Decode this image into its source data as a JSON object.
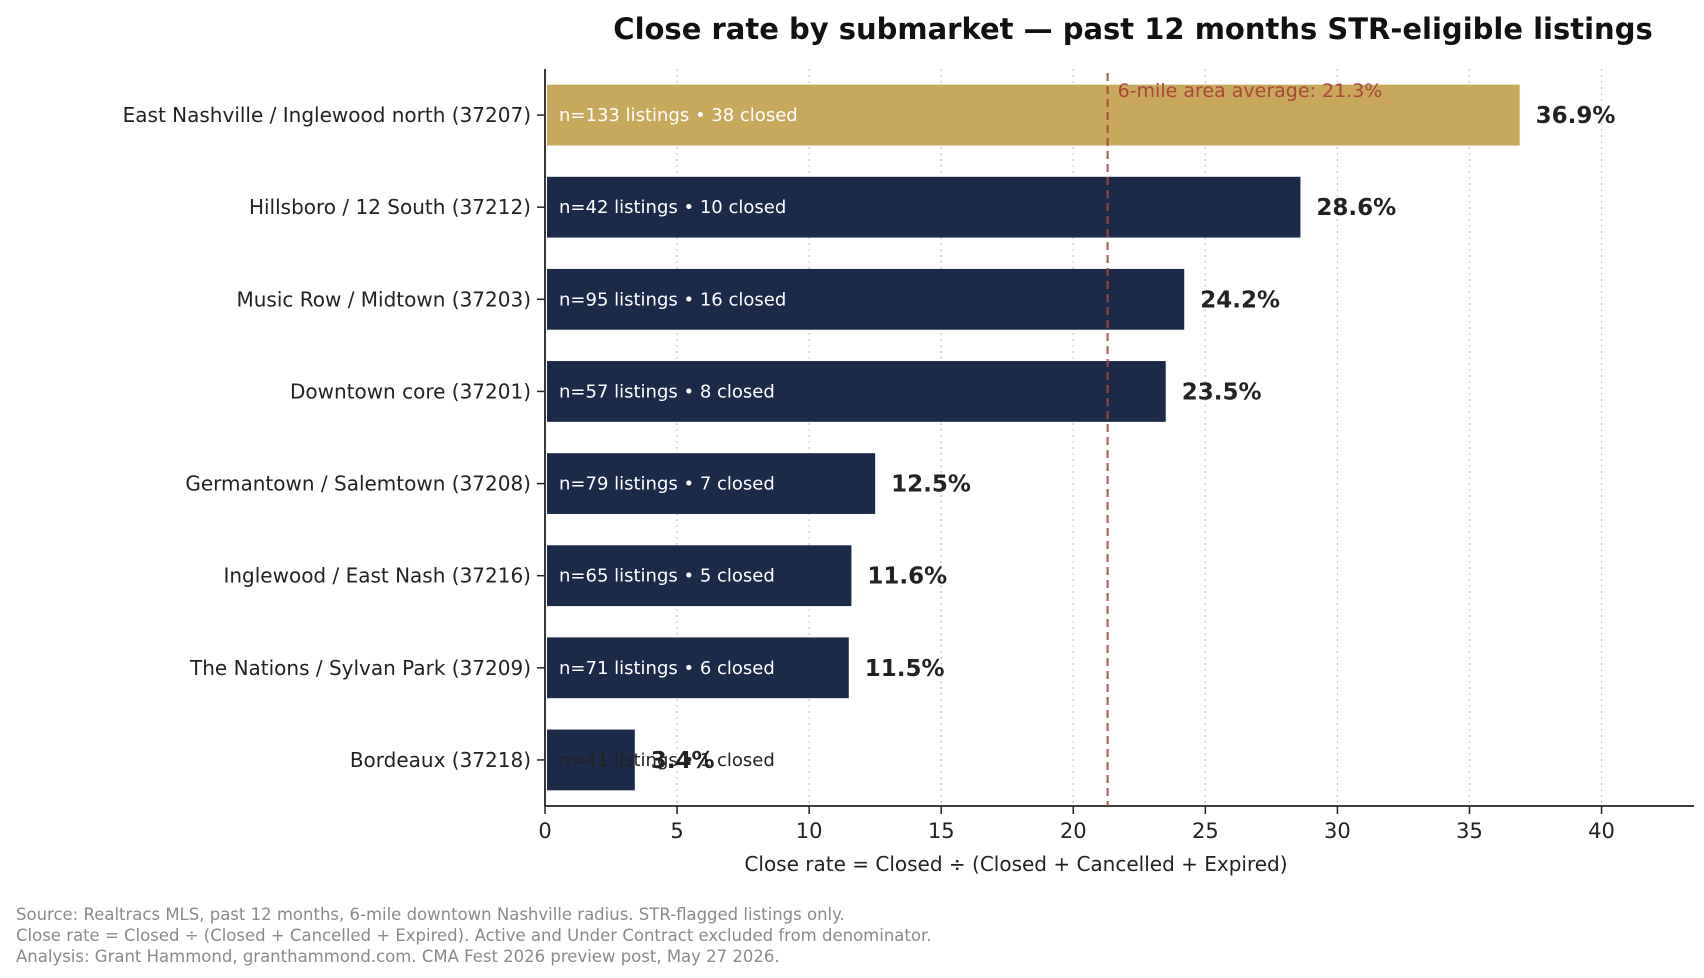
{
  "chart_data": {
    "type": "bar",
    "orientation": "horizontal",
    "title": "Close rate by submarket — past 12 months STR-eligible listings",
    "xlabel": "Close rate = Closed ÷ (Closed + Cancelled + Expired)",
    "ylabel": "",
    "xlim": [
      0,
      43.5
    ],
    "xticks": [
      0,
      5,
      10,
      15,
      20,
      25,
      30,
      35,
      40
    ],
    "grid": "x-dotted",
    "categories": [
      "East Nashville / Inglewood north (37207)",
      "Hillsboro / 12 South (37212)",
      "Music Row / Midtown (37203)",
      "Downtown core (37201)",
      "Germantown / Salemtown (37208)",
      "Inglewood / East Nash (37216)",
      "The Nations / Sylvan Park (37209)",
      "Bordeaux (37218)"
    ],
    "values": [
      36.9,
      28.6,
      24.2,
      23.5,
      12.5,
      11.6,
      11.5,
      3.4
    ],
    "value_labels": [
      "36.9%",
      "28.6%",
      "24.2%",
      "23.5%",
      "12.5%",
      "11.6%",
      "11.5%",
      "3.4%"
    ],
    "bar_labels": [
      "n=133 listings • 38 closed",
      "n=42 listings • 10 closed",
      "n=95 listings • 16 closed",
      "n=57 listings • 8 closed",
      "n=79 listings • 7 closed",
      "n=65 listings • 5 closed",
      "n=71 listings • 6 closed",
      "n=41 listings • 1 closed"
    ],
    "highlight_index": 0,
    "colors": {
      "highlight": "#c8a85c",
      "bar": "#1c2a4a",
      "average": "#a9463d"
    },
    "reference_line": {
      "value": 21.3,
      "label": "6-mile area average: 21.3%"
    }
  },
  "footnotes": [
    "Source: Realtracs MLS, past 12 months, 6-mile downtown Nashville radius. STR-flagged listings only.",
    "Close rate = Closed ÷ (Closed + Cancelled + Expired). Active and Under Contract excluded from denominator.",
    "Analysis: Grant Hammond, granthammond.com. CMA Fest 2026 preview post, May 27 2026."
  ]
}
